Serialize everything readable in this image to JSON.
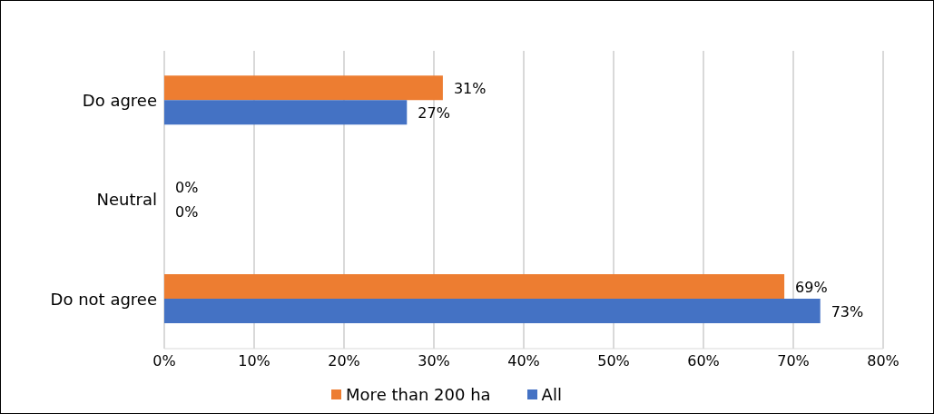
{
  "chart_data": {
    "type": "bar",
    "orientation": "horizontal",
    "categories": [
      "Do agree",
      "Neutral",
      "Do not agree"
    ],
    "series": [
      {
        "name": "More than 200 ha",
        "color": "#ed7d31",
        "values": [
          31,
          0,
          69
        ],
        "value_labels": [
          "31%",
          "0%",
          "69%"
        ]
      },
      {
        "name": "All",
        "color": "#4472c4",
        "values": [
          27,
          0,
          73
        ],
        "value_labels": [
          "27%",
          "0%",
          "73%"
        ]
      }
    ],
    "xlim": [
      0,
      80
    ],
    "xticks": [
      {
        "value": 0,
        "label": "0%"
      },
      {
        "value": 10,
        "label": "10%"
      },
      {
        "value": 20,
        "label": "20%"
      },
      {
        "value": 30,
        "label": "30%"
      },
      {
        "value": 40,
        "label": "40%"
      },
      {
        "value": 50,
        "label": "50%"
      },
      {
        "value": 60,
        "label": "60%"
      },
      {
        "value": 70,
        "label": "70%"
      },
      {
        "value": 80,
        "label": "80%"
      }
    ],
    "grid": "x",
    "legend": "bottom"
  }
}
